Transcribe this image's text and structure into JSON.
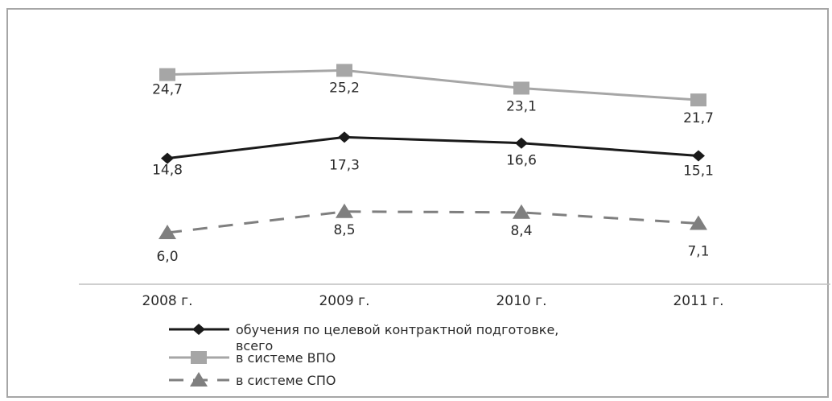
{
  "chart_data": {
    "type": "line",
    "categories": [
      "2008 г.",
      "2009 г.",
      "2010 г.",
      "2011 г."
    ],
    "series": [
      {
        "name": "обучения по целевой контрактной подготовке, всего",
        "legend_lines": [
          "обучения по целевой контрактной подготовке,",
          "всего"
        ],
        "values": [
          14.8,
          17.3,
          16.6,
          15.1
        ],
        "labels": [
          "14,8",
          "17,3",
          "16,6",
          "15,1"
        ],
        "color": "#1a1a1a",
        "marker": "diamond",
        "dashed": false
      },
      {
        "name": "в системе ВПО",
        "legend_lines": [
          "в системе ВПО"
        ],
        "values": [
          24.7,
          25.2,
          23.1,
          21.7
        ],
        "labels": [
          "24,7",
          "25,2",
          "23,1",
          "21,7"
        ],
        "color": "#a6a6a6",
        "marker": "square",
        "dashed": false
      },
      {
        "name": "в системе СПО",
        "legend_lines": [
          "в системе СПО"
        ],
        "values": [
          6.0,
          8.5,
          8.4,
          7.1
        ],
        "labels": [
          "6,0",
          "8,5",
          "8,4",
          "7,1"
        ],
        "color": "#7f7f7f",
        "marker": "triangle",
        "dashed": true
      }
    ],
    "grid": false,
    "legend_position": "bottom"
  }
}
